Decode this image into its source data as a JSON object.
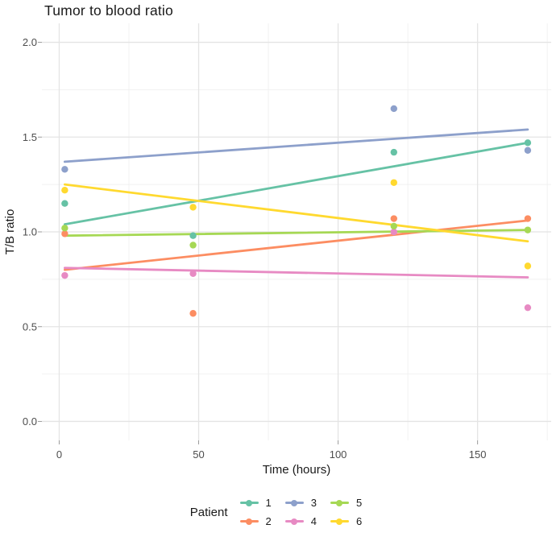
{
  "title": "Tumor to blood ratio",
  "chart_data": {
    "type": "scatter",
    "title": "Tumor to blood ratio",
    "xlabel": "Time (hours)",
    "ylabel": "T/B ratio",
    "legend_title": "Patient",
    "legend_position": "bottom",
    "grid": true,
    "x_domain": [
      -6.2,
      176.4
    ],
    "y_domain": [
      -0.1,
      2.1
    ],
    "x_ticks": [
      {
        "value": 0,
        "label": "0"
      },
      {
        "value": 50,
        "label": "50"
      },
      {
        "value": 100,
        "label": "100"
      },
      {
        "value": 150,
        "label": "150"
      }
    ],
    "y_ticks": [
      {
        "value": 0.0,
        "label": "0.0"
      },
      {
        "value": 0.5,
        "label": "0.5"
      },
      {
        "value": 1.0,
        "label": "1.0"
      },
      {
        "value": 1.5,
        "label": "1.5"
      },
      {
        "value": 2.0,
        "label": "2.0"
      }
    ],
    "x_minor": [
      25,
      75,
      125,
      175
    ],
    "y_minor": [
      0.25,
      0.75,
      1.25,
      1.75
    ],
    "series": [
      {
        "name": "1",
        "color": "#66C2A5",
        "points": [
          [
            2,
            1.15
          ],
          [
            48,
            0.98
          ],
          [
            120,
            1.42
          ],
          [
            168,
            1.47
          ]
        ],
        "trend": [
          [
            2,
            1.04
          ],
          [
            168,
            1.47
          ]
        ]
      },
      {
        "name": "2",
        "color": "#FC8D62",
        "points": [
          [
            2,
            0.99
          ],
          [
            48,
            0.57
          ],
          [
            120,
            1.07
          ],
          [
            168,
            1.07
          ]
        ],
        "trend": [
          [
            2,
            0.8
          ],
          [
            168,
            1.06
          ]
        ]
      },
      {
        "name": "3",
        "color": "#8DA0CB",
        "points": [
          [
            2,
            1.33
          ],
          [
            120,
            1.65
          ],
          [
            168,
            1.43
          ]
        ],
        "trend": [
          [
            2,
            1.37
          ],
          [
            168,
            1.54
          ]
        ]
      },
      {
        "name": "4",
        "color": "#E78AC3",
        "points": [
          [
            2,
            0.77
          ],
          [
            48,
            0.78
          ],
          [
            120,
            1.0
          ],
          [
            168,
            0.6
          ]
        ],
        "trend": [
          [
            2,
            0.81
          ],
          [
            168,
            0.76
          ]
        ]
      },
      {
        "name": "5",
        "color": "#A6D854",
        "points": [
          [
            2,
            1.02
          ],
          [
            48,
            0.93
          ],
          [
            120,
            1.03
          ],
          [
            168,
            1.01
          ]
        ],
        "trend": [
          [
            2,
            0.98
          ],
          [
            168,
            1.01
          ]
        ]
      },
      {
        "name": "6",
        "color": "#FFD92F",
        "points": [
          [
            2,
            1.22
          ],
          [
            48,
            1.13
          ],
          [
            120,
            1.26
          ],
          [
            168,
            0.82
          ]
        ],
        "trend": [
          [
            2,
            1.25
          ],
          [
            168,
            0.95
          ]
        ]
      }
    ],
    "style": {
      "grid_major_color": "#E4E4E4",
      "grid_minor_color": "#F0F0F0",
      "tick_mark_color": "#9b9b9b",
      "point_radius": 4.2,
      "line_width": 2.8
    }
  }
}
